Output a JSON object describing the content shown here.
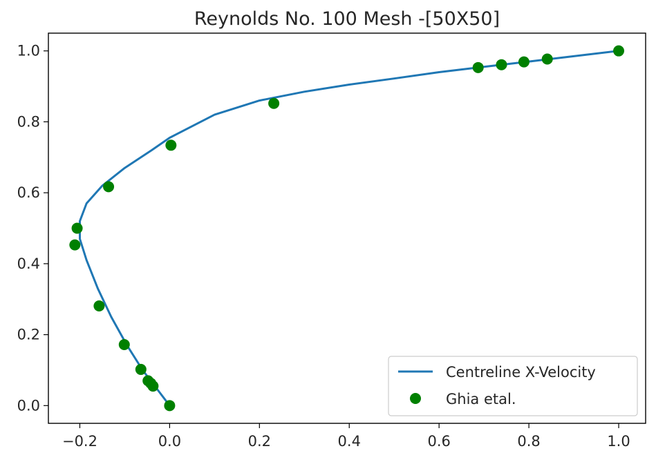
{
  "chart_data": {
    "type": "line",
    "title": "Reynolds No. 100 Mesh -[50X50]",
    "xlabel": "",
    "ylabel": "",
    "xlim": [
      -0.27,
      1.06
    ],
    "ylim": [
      -0.05,
      1.05
    ],
    "x_ticks": [
      -0.2,
      0.0,
      0.2,
      0.4,
      0.6,
      0.8,
      1.0
    ],
    "x_tick_labels": [
      "−0.2",
      "0.0",
      "0.2",
      "0.4",
      "0.6",
      "0.8",
      "1.0"
    ],
    "y_ticks": [
      0.0,
      0.2,
      0.4,
      0.6,
      0.8,
      1.0
    ],
    "y_tick_labels": [
      "0.0",
      "0.2",
      "0.4",
      "0.6",
      "0.8",
      "1.0"
    ],
    "grid": false,
    "legend_position": "lower-right",
    "series": [
      {
        "name": "Centreline X-Velocity",
        "kind": "line",
        "color": "#1f77b4",
        "points": [
          [
            0.0,
            0.0
          ],
          [
            -0.03,
            0.05
          ],
          [
            -0.06,
            0.1
          ],
          [
            -0.095,
            0.17
          ],
          [
            -0.13,
            0.25
          ],
          [
            -0.16,
            0.33
          ],
          [
            -0.185,
            0.41
          ],
          [
            -0.2,
            0.47
          ],
          [
            -0.2,
            0.52
          ],
          [
            -0.185,
            0.57
          ],
          [
            -0.15,
            0.62
          ],
          [
            -0.1,
            0.67
          ],
          [
            -0.04,
            0.72
          ],
          [
            0.0,
            0.755
          ],
          [
            0.1,
            0.82
          ],
          [
            0.2,
            0.86
          ],
          [
            0.3,
            0.885
          ],
          [
            0.4,
            0.905
          ],
          [
            0.5,
            0.922
          ],
          [
            0.6,
            0.94
          ],
          [
            0.7,
            0.955
          ],
          [
            0.8,
            0.97
          ],
          [
            0.9,
            0.985
          ],
          [
            1.0,
            1.0
          ]
        ]
      },
      {
        "name": "Ghia etal.",
        "kind": "scatter",
        "color": "#008000",
        "points": [
          [
            1.0,
            1.0
          ],
          [
            0.841,
            0.977
          ],
          [
            0.789,
            0.969
          ],
          [
            0.739,
            0.961
          ],
          [
            0.687,
            0.953
          ],
          [
            0.232,
            0.852
          ],
          [
            0.003,
            0.734
          ],
          [
            -0.136,
            0.617
          ],
          [
            -0.206,
            0.5
          ],
          [
            -0.211,
            0.453
          ],
          [
            -0.157,
            0.281
          ],
          [
            -0.101,
            0.172
          ],
          [
            -0.064,
            0.102
          ],
          [
            -0.048,
            0.07
          ],
          [
            -0.042,
            0.063
          ],
          [
            -0.037,
            0.055
          ],
          [
            0.0,
            0.0
          ]
        ]
      }
    ]
  }
}
